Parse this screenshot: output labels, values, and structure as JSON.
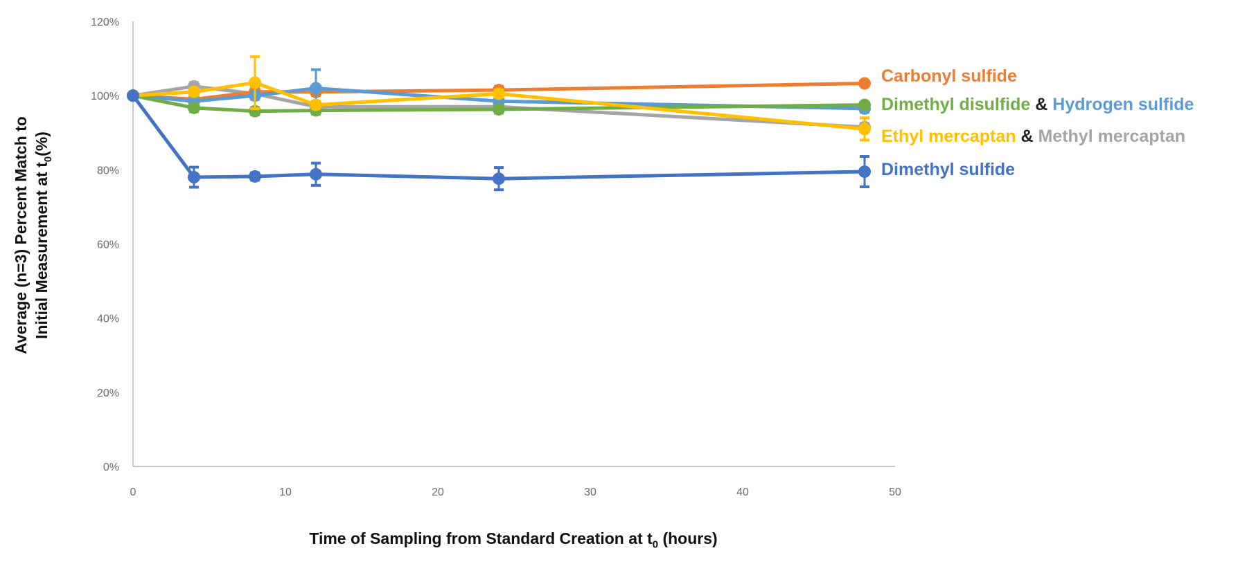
{
  "chart_data": {
    "type": "line",
    "title": "",
    "xlabel": {
      "main": "Time of Sampling from Standard Creation at t",
      "sub": "0",
      "after": " (hours)"
    },
    "ylabel": {
      "line1": "Average (n=3) Percent Match to",
      "line2_main": "Initial Measurement at t",
      "line2_sub": "0",
      "line2_after": "(%)"
    },
    "xlim": [
      0,
      50
    ],
    "ylim": [
      0,
      120
    ],
    "x_ticks": [
      "0",
      "10",
      "20",
      "30",
      "40",
      "50"
    ],
    "y_ticks": [
      "0%",
      "20%",
      "40%",
      "60%",
      "80%",
      "100%",
      "120%"
    ],
    "grid": false,
    "x": [
      0,
      4,
      8,
      12,
      24,
      48
    ],
    "series": [
      {
        "name": "Methyl mercaptan",
        "color": "#A5A5A5",
        "values": [
          100,
          102.5,
          100.5,
          97,
          97,
          91.5
        ],
        "errors": [
          0,
          1,
          1,
          1,
          1,
          1
        ]
      },
      {
        "name": "Carbonyl sulfide",
        "color": "#ED7D31",
        "values": [
          100,
          99,
          101,
          101,
          101.5,
          103.3
        ],
        "errors": [
          0,
          1,
          1,
          1,
          1,
          0.5
        ]
      },
      {
        "name": "Hydrogen sulfide",
        "color": "#5B9BD5",
        "values": [
          100,
          98.5,
          100,
          102,
          98.5,
          96.5
        ],
        "errors": [
          0,
          1,
          1,
          5,
          0.5,
          1
        ]
      },
      {
        "name": "Dimethyl disulfide",
        "color": "#70AD47",
        "values": [
          100,
          96.7,
          95.8,
          96,
          96.3,
          97.5
        ],
        "errors": [
          0,
          1,
          1,
          1,
          1,
          0.5
        ]
      },
      {
        "name": "Ethyl mercaptan",
        "color": "#FFC000",
        "values": [
          100,
          101,
          103.5,
          97.5,
          100.5,
          91
        ],
        "errors": [
          0,
          1,
          7,
          1,
          1,
          3
        ]
      },
      {
        "name": "Dimethyl sulfide",
        "color": "#4472C4",
        "values": [
          100,
          78,
          78.2,
          78.8,
          77.6,
          79.5
        ],
        "errors": [
          0,
          2.7,
          1,
          3,
          3,
          4.1
        ]
      }
    ],
    "legend": [
      [
        {
          "text": "Carbonyl sulfide",
          "color": "#ED7D31"
        }
      ],
      [
        {
          "text": "Dimethyl disulfide",
          "color": "#70AD47"
        },
        {
          "text": " & ",
          "color": "#222222"
        },
        {
          "text": "Hydrogen sulfide",
          "color": "#5B9BD5"
        }
      ],
      [
        {
          "text": "Ethyl mercaptan",
          "color": "#FFC000"
        },
        {
          "text": " & ",
          "color": "#222222"
        },
        {
          "text": "Methyl mercaptan",
          "color": "#A5A5A5"
        }
      ],
      [
        {
          "text": "Dimethyl sulfide",
          "color": "#4472C4"
        }
      ]
    ]
  }
}
